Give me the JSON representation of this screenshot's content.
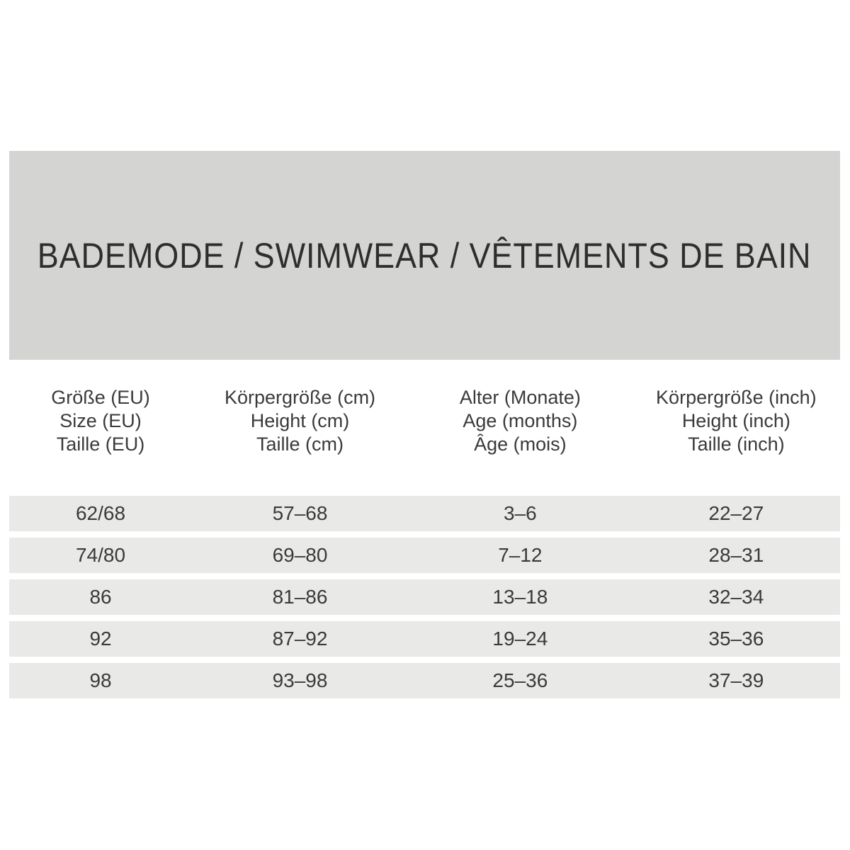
{
  "title": "BADEMODE / SWIMWEAR / VÊTEMENTS DE BAIN",
  "colors": {
    "banner_bg": "#d4d4d2",
    "row_bg": "#e9e9e7",
    "title_text": "#2e2e2e",
    "body_text": "#3a3a3a",
    "page_bg": "#ffffff"
  },
  "table": {
    "columns": [
      {
        "lines": [
          "Größe (EU)",
          "Size (EU)",
          "Taille (EU)"
        ]
      },
      {
        "lines": [
          "Körpergröße (cm)",
          "Height (cm)",
          "Taille (cm)"
        ]
      },
      {
        "lines": [
          "Alter (Monate)",
          "Age (months)",
          "Âge (mois)"
        ]
      },
      {
        "lines": [
          "Körpergröße (inch)",
          "Height (inch)",
          "Taille (inch)"
        ]
      }
    ],
    "rows": [
      [
        "62/68",
        "57–68",
        "3–6",
        "22–27"
      ],
      [
        "74/80",
        "69–80",
        "7–12",
        "28–31"
      ],
      [
        "86",
        "81–86",
        "13–18",
        "32–34"
      ],
      [
        "92",
        "87–92",
        "19–24",
        "35–36"
      ],
      [
        "98",
        "93–98",
        "25–36",
        "37–39"
      ]
    ]
  }
}
